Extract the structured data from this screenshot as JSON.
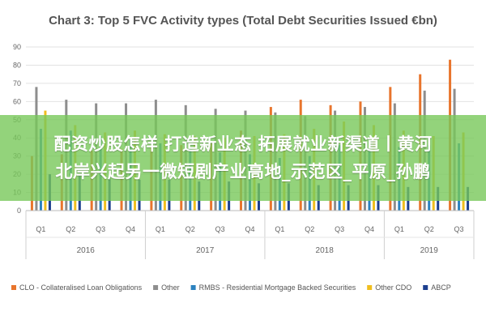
{
  "chart_data": {
    "type": "bar",
    "title": "Chart 3: Top 5 FVC Activity types (Total Debt Securities Issued €bn)",
    "xlabel": "",
    "ylabel": "",
    "ylim": [
      0,
      90
    ],
    "yticks": [
      0,
      10,
      20,
      30,
      40,
      50,
      60,
      70,
      80,
      90
    ],
    "grid": true,
    "legend_position": "bottom",
    "categories": [
      "Q1",
      "Q2",
      "Q3",
      "Q4",
      "Q1",
      "Q2",
      "Q3",
      "Q4",
      "Q1",
      "Q2",
      "Q3",
      "Q4",
      "Q1",
      "Q2",
      "Q3"
    ],
    "groups": [
      {
        "label": "2016",
        "count": 4
      },
      {
        "label": "2017",
        "count": 4
      },
      {
        "label": "2018",
        "count": 4
      },
      {
        "label": "2019",
        "count": 3
      }
    ],
    "series": [
      {
        "name": "CLO - Collateralised Loan Obligations",
        "color": "#e8752d",
        "values": [
          30,
          31,
          33,
          34,
          35,
          36,
          37,
          44,
          57,
          61,
          58,
          60,
          68,
          75,
          83
        ]
      },
      {
        "name": "Other",
        "color": "#8e8e8e",
        "values": [
          68,
          61,
          59,
          59,
          61,
          58,
          56,
          55,
          54,
          52,
          55,
          57,
          59,
          66,
          67
        ]
      },
      {
        "name": "RMBS - Residential Mortgage Backed Securities",
        "color": "#2c82bf",
        "values": [
          45,
          44,
          41,
          39,
          37,
          34,
          32,
          31,
          29,
          30,
          36,
          33,
          35,
          36,
          37
        ]
      },
      {
        "name": "Other CDO",
        "color": "#f0be1e",
        "values": [
          55,
          47,
          43,
          44,
          42,
          41,
          40,
          41,
          42,
          45,
          49,
          47,
          44,
          41,
          43
        ]
      },
      {
        "name": "ABCP",
        "color": "#1c3f8f",
        "values": [
          20,
          19,
          18,
          17,
          17,
          16,
          16,
          15,
          15,
          14,
          14,
          14,
          13,
          13,
          13
        ]
      }
    ]
  },
  "overlay": {
    "line1": "配资炒股怎样 打造新业态 拓展就业新渠道丨黄河",
    "line2": "北岸兴起另一微短剧产业高地_示范区_平原_孙鹏"
  }
}
